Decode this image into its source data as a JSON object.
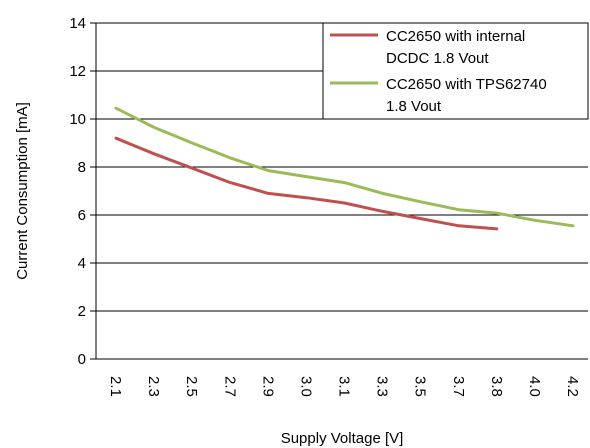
{
  "chart_data": {
    "type": "line",
    "xlabel": "Supply Voltage [V]",
    "ylabel": "Current Consumption [mA]",
    "x_ticks": [
      "2.1",
      "2.3",
      "2.5",
      "2.7",
      "2.9",
      "3.0",
      "3.1",
      "3.3",
      "3.5",
      "3.7",
      "3.8",
      "4.0",
      "4.2"
    ],
    "y_ticks": [
      "0",
      "2",
      "4",
      "6",
      "8",
      "10",
      "12",
      "14"
    ],
    "ylim": [
      0,
      14
    ],
    "grid": "horizontal",
    "legend_position": "top-right",
    "series": [
      {
        "name": "CC2650 with internal DCDC 1.8 Vout",
        "legend_lines": [
          "CC2650 with internal",
          "DCDC 1.8 Vout"
        ],
        "color": "#c0504d",
        "values": [
          9.2,
          8.55,
          7.95,
          7.35,
          6.9,
          6.72,
          6.5,
          6.15,
          5.85,
          5.55,
          5.42,
          null,
          null
        ]
      },
      {
        "name": "CC2650 with TPS62740 1.8 Vout",
        "legend_lines": [
          "CC2650 with TPS62740",
          "1.8 Vout"
        ],
        "color": "#9bbb59",
        "values": [
          10.45,
          9.65,
          9.0,
          8.38,
          7.85,
          7.6,
          7.35,
          6.9,
          6.55,
          6.22,
          6.08,
          5.78,
          5.55
        ]
      }
    ]
  }
}
